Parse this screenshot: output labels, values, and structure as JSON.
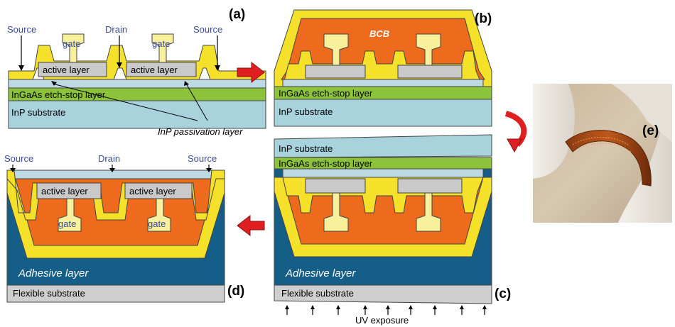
{
  "colors": {
    "yellow": "#f5e12a",
    "yellow_light": "#f8f09a",
    "orange": "#ee6a1c",
    "gray": "#c9c9c9",
    "green": "#8dc33a",
    "substrate_blue": "#a8d3dd",
    "passivation_blue": "#bcd9e4",
    "adhesive": "#145e87",
    "flexible": "#cfcfcf",
    "arrow_red": "#e02020",
    "label_blue": "#3a4aa0"
  },
  "panel_a": {
    "tag": "(a)",
    "source_left": "Source",
    "drain": "Drain",
    "source_right": "Source",
    "gate_1": "gate",
    "gate_2": "gate",
    "active_1": "active layer",
    "active_2": "active layer",
    "etch_stop": "InGaAs etch-stop layer",
    "substrate": "InP substrate",
    "passivation": "InP passivation layer"
  },
  "panel_b": {
    "tag": "(b)",
    "bcb": "BCB",
    "etch_stop": "InGaAs etch-stop layer",
    "substrate": "InP substrate"
  },
  "panel_c": {
    "tag": "(c)",
    "substrate": "InP substrate",
    "etch_stop": "InGaAs etch-stop layer",
    "adhesive": "Adhesive layer",
    "flexible": "Flexible substrate",
    "uv": "UV exposure"
  },
  "panel_d": {
    "tag": "(d)",
    "source_left": "Source",
    "drain": "Drain",
    "source_right": "Source",
    "active_1": "active layer",
    "active_2": "active layer",
    "gate_1": "gate",
    "gate_2": "gate",
    "adhesive": "Adhesive layer",
    "flexible": "Flexible substrate"
  },
  "panel_e": {
    "tag": "(e)",
    "photo": "photo-flexible-device"
  }
}
